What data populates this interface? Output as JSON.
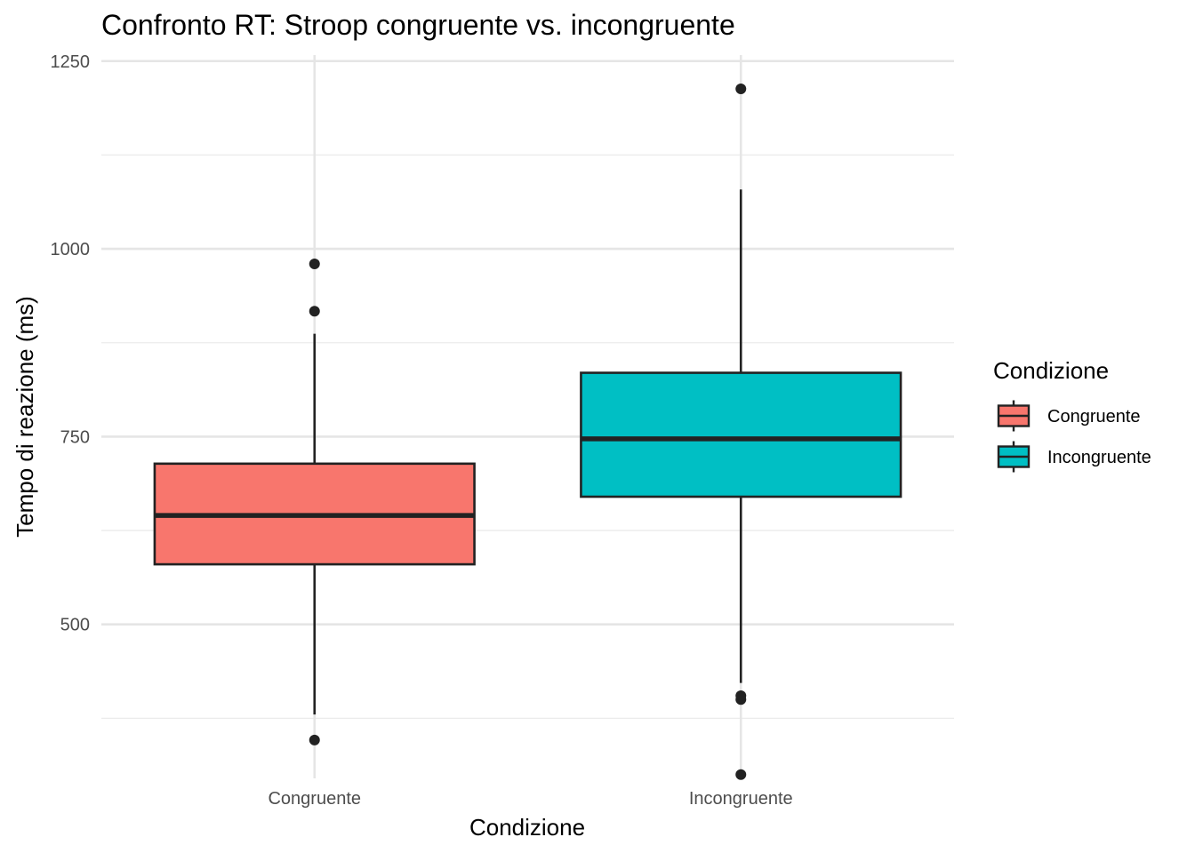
{
  "chart_data": {
    "type": "boxplot",
    "title": "Confronto RT: Stroop congruente vs. incongruente",
    "xlabel": "Condizione",
    "ylabel": "Tempo di reazione (ms)",
    "ylim": [
      295,
      1258
    ],
    "y_ticks": [
      500,
      750,
      1000,
      1250
    ],
    "y_minor_ticks": [
      375,
      625,
      875,
      1125
    ],
    "grid": true,
    "legend": {
      "title": "Condizione",
      "position": "right",
      "entries": [
        "Congruente",
        "Incongruente"
      ]
    },
    "categories": [
      "Congruente",
      "Incongruente"
    ],
    "boxes": [
      {
        "category": "Congruente",
        "color": "#F8766D",
        "whisker_low": 380,
        "q1": 580,
        "median": 645,
        "q3": 714,
        "whisker_high": 887,
        "outliers": [
          346,
          917,
          980
        ]
      },
      {
        "category": "Incongruente",
        "color": "#00BFC4",
        "whisker_low": 422,
        "q1": 670,
        "median": 747,
        "q3": 835,
        "whisker_high": 1079,
        "outliers": [
          300,
          400,
          405,
          1213
        ]
      }
    ]
  }
}
